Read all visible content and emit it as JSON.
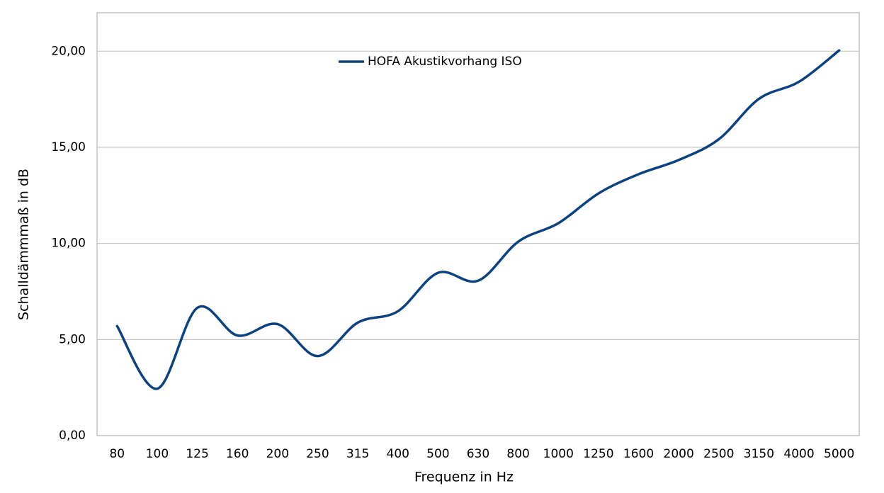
{
  "chart_data": {
    "type": "line",
    "x_label": "Frequenz in Hz",
    "y_label": "Schalldämmmaß in dB",
    "categories": [
      "80",
      "100",
      "125",
      "160",
      "200",
      "250",
      "315",
      "400",
      "500",
      "630",
      "800",
      "1000",
      "1250",
      "1600",
      "2000",
      "2500",
      "3150",
      "4000",
      "5000"
    ],
    "series": [
      {
        "name": "HOFA Akustikvorhang ISO",
        "color": "#0d4282",
        "values": [
          5.7,
          2.44,
          6.65,
          5.21,
          5.8,
          4.14,
          5.88,
          6.47,
          8.47,
          8.06,
          10.09,
          11.05,
          12.6,
          13.6,
          14.34,
          15.42,
          17.52,
          18.41,
          20.04
        ]
      }
    ],
    "ylim": [
      0,
      22
    ],
    "yticks": [
      {
        "value": 0,
        "label": "0,00"
      },
      {
        "value": 5,
        "label": "5,00"
      },
      {
        "value": 10,
        "label": "10,00"
      },
      {
        "value": 15,
        "label": "15,00"
      },
      {
        "value": 20,
        "label": "20,00"
      }
    ],
    "grid": true
  }
}
